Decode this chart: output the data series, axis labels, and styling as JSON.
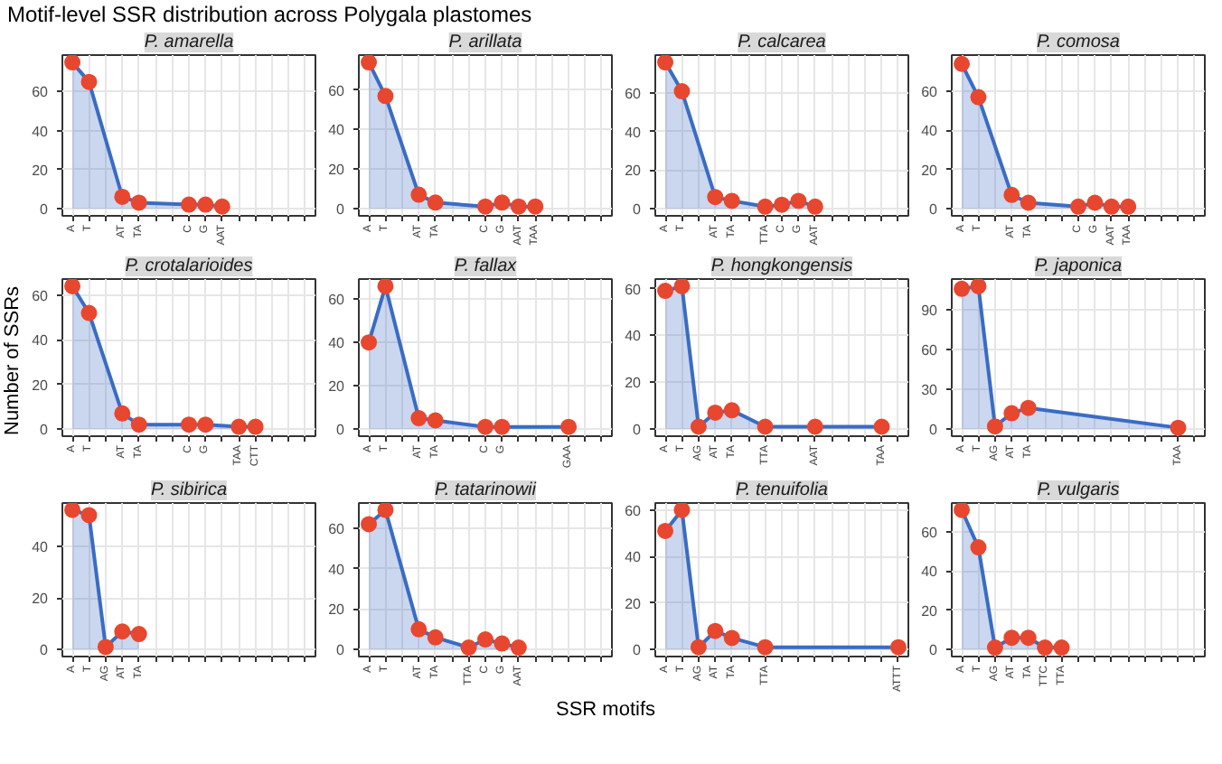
{
  "chart_data": [
    {
      "type": "area",
      "title": "P. amarella",
      "annotations": [
        "Motif-level SSR distribution across Polygala plastomes"
      ],
      "categories": [
        "A",
        "T",
        null,
        "AT",
        "TA",
        null,
        null,
        "C",
        "G",
        "AAT",
        null,
        null,
        null,
        null,
        null
      ],
      "ylim": [
        -3.75,
        78.75
      ],
      "yticks": [
        0,
        20,
        40,
        60
      ],
      "grid": true,
      "marker": "circle",
      "series": [
        {
          "color": "#3a6cc4",
          "colors": [
            "#e8472f",
            "#e8472f",
            "#e8472f",
            "#e8472f",
            "#e8472f",
            "#e8472f",
            "#e8472f",
            "#e8472f",
            "#e8472f",
            "#e8472f",
            "#e8472f",
            "#e8472f",
            "#e8472f",
            "#e8472f",
            "#e8472f"
          ],
          "values": [
            75,
            65,
            null,
            6,
            3,
            null,
            null,
            2,
            2,
            1,
            null,
            null,
            null,
            null,
            null
          ]
        }
      ]
    },
    {
      "type": "area",
      "title": "P. arillata",
      "categories": [
        "A",
        "T",
        null,
        "AT",
        "TA",
        null,
        null,
        "C",
        "G",
        "AAT",
        "TAA",
        null,
        null,
        null,
        null
      ],
      "ylim": [
        -3.7,
        77.7
      ],
      "yticks": [
        0,
        20,
        40,
        60
      ],
      "grid": true,
      "marker": "circle",
      "series": [
        {
          "color": "#3a6cc4",
          "colors": [
            "#e8472f",
            "#e8472f",
            "#e8472f",
            "#e8472f",
            "#e8472f",
            "#e8472f",
            "#e8472f",
            "#e8472f",
            "#e8472f",
            "#e8472f",
            "#e8472f",
            "#e8472f",
            "#e8472f",
            "#e8472f",
            "#e8472f"
          ],
          "values": [
            74,
            57,
            null,
            7,
            3,
            null,
            null,
            1,
            3,
            1,
            1,
            null,
            null,
            null,
            null
          ]
        }
      ]
    },
    {
      "type": "area",
      "title": "P. calcarea",
      "categories": [
        "A",
        "T",
        null,
        "AT",
        "TA",
        null,
        "TTA",
        "C",
        "G",
        "AAT",
        null,
        null,
        null,
        null,
        null
      ],
      "ylim": [
        -3.8,
        79.8
      ],
      "yticks": [
        0,
        20,
        40,
        60
      ],
      "grid": true,
      "marker": "circle",
      "series": [
        {
          "color": "#3a6cc4",
          "colors": [
            "#e8472f",
            "#e8472f",
            "#e8472f",
            "#e8472f",
            "#e8472f",
            "#e8472f",
            "#e8472f",
            "#e8472f",
            "#e8472f",
            "#e8472f",
            "#e8472f",
            "#e8472f",
            "#e8472f",
            "#e8472f",
            "#e8472f"
          ],
          "values": [
            76,
            61,
            null,
            6,
            4,
            null,
            1,
            2,
            4,
            1,
            null,
            null,
            null,
            null,
            null
          ]
        }
      ]
    },
    {
      "type": "area",
      "title": "P. comosa",
      "categories": [
        "A",
        "T",
        null,
        "AT",
        "TA",
        null,
        null,
        "C",
        "G",
        "AAT",
        "TAA",
        null,
        null,
        null,
        null
      ],
      "ylim": [
        -3.7,
        78.5
      ],
      "yticks": [
        0,
        20,
        40,
        60
      ],
      "grid": true,
      "marker": "circle",
      "series": [
        {
          "color": "#3a6cc4",
          "colors": [
            "#e8472f",
            "#e8472f",
            "#e8472f",
            "#e8472f",
            "#e8472f",
            "#e8472f",
            "#e8472f",
            "#e8472f",
            "#e8472f",
            "#e8472f",
            "#e8472f",
            "#e8472f",
            "#e8472f",
            "#e8472f",
            "#e8472f"
          ],
          "values": [
            74,
            57,
            null,
            7,
            3,
            null,
            null,
            1,
            3,
            1,
            1,
            null,
            null,
            null,
            null
          ]
        }
      ]
    },
    {
      "type": "area",
      "title": "P. crotalarioides",
      "ylabel": "Number of SSRs",
      "categories": [
        "A",
        "T",
        null,
        "AT",
        "TA",
        null,
        null,
        "C",
        "G",
        null,
        "TAA",
        "CTT",
        null,
        null,
        null
      ],
      "ylim": [
        -3.2,
        67.2
      ],
      "yticks": [
        0,
        20,
        40,
        60
      ],
      "grid": true,
      "marker": "circle",
      "series": [
        {
          "color": "#3a6cc4",
          "colors": [
            "#e8472f",
            "#e8472f",
            "#e8472f",
            "#e8472f",
            "#e8472f",
            "#e8472f",
            "#e8472f",
            "#e8472f",
            "#e8472f",
            "#e8472f",
            "#e8472f",
            "#e8472f",
            "#e8472f",
            "#e8472f",
            "#e8472f"
          ],
          "values": [
            64,
            52,
            null,
            7,
            2,
            null,
            null,
            2,
            2,
            null,
            1,
            1,
            null,
            null,
            null
          ]
        }
      ]
    },
    {
      "type": "area",
      "title": "P. fallax",
      "categories": [
        "A",
        "T",
        null,
        "AT",
        "TA",
        null,
        null,
        "C",
        "G",
        null,
        null,
        null,
        "GAA",
        null,
        null
      ],
      "ylim": [
        -3.3,
        69.3
      ],
      "yticks": [
        0,
        20,
        40,
        60
      ],
      "grid": true,
      "marker": "circle",
      "series": [
        {
          "color": "#3a6cc4",
          "colors": [
            "#e8472f",
            "#e8472f",
            "#e8472f",
            "#e8472f",
            "#e8472f",
            "#e8472f",
            "#e8472f",
            "#e8472f",
            "#e8472f",
            "#e8472f",
            "#e8472f",
            "#e8472f",
            "#e8472f",
            "#e8472f",
            "#e8472f"
          ],
          "values": [
            40,
            66,
            null,
            5,
            4,
            null,
            null,
            1,
            1,
            null,
            null,
            null,
            1,
            null,
            null
          ]
        }
      ]
    },
    {
      "type": "area",
      "title": "P. hongkongensis",
      "categories": [
        "A",
        "T",
        "AG",
        "AT",
        "TA",
        null,
        "TTA",
        null,
        null,
        "AAT",
        null,
        null,
        null,
        "TAA",
        null
      ],
      "ylim": [
        -3.05,
        64.05
      ],
      "yticks": [
        0,
        20,
        40,
        60
      ],
      "grid": true,
      "marker": "circle",
      "series": [
        {
          "color": "#3a6cc4",
          "colors": [
            "#e8472f",
            "#e8472f",
            "#e8472f",
            "#e8472f",
            "#e8472f",
            "#e8472f",
            "#e8472f",
            "#e8472f",
            "#e8472f",
            "#e8472f",
            "#e8472f",
            "#e8472f",
            "#e8472f",
            "#e8472f",
            "#e8472f"
          ],
          "values": [
            59,
            61,
            1,
            7,
            8,
            null,
            1,
            null,
            null,
            1,
            null,
            null,
            null,
            1,
            null
          ]
        }
      ]
    },
    {
      "type": "area",
      "title": "P. japonica",
      "categories": [
        "A",
        "T",
        "AG",
        "AT",
        "TA",
        null,
        null,
        null,
        null,
        null,
        null,
        null,
        null,
        "TAA",
        null
      ],
      "ylim": [
        -5.4,
        113.4
      ],
      "yticks": [
        0,
        30,
        60,
        90
      ],
      "grid": true,
      "marker": "circle",
      "series": [
        {
          "color": "#3a6cc4",
          "colors": [
            "#e8472f",
            "#e8472f",
            "#e8472f",
            "#e8472f",
            "#e8472f",
            "#e8472f",
            "#e8472f",
            "#e8472f",
            "#e8472f",
            "#e8472f",
            "#e8472f",
            "#e8472f",
            "#e8472f",
            "#e8472f",
            "#e8472f"
          ],
          "values": [
            106,
            108,
            2,
            12,
            16,
            null,
            null,
            null,
            null,
            null,
            null,
            null,
            null,
            1,
            null
          ]
        }
      ]
    },
    {
      "type": "area",
      "title": "P. sibirica",
      "categories": [
        "A",
        "T",
        "AG",
        "AT",
        "TA",
        null,
        null,
        null,
        null,
        null,
        null,
        null,
        null,
        null,
        null
      ],
      "ylim": [
        -2.7,
        56.7
      ],
      "yticks": [
        0,
        20,
        40
      ],
      "grid": true,
      "marker": "circle",
      "series": [
        {
          "color": "#3a6cc4",
          "colors": [
            "#e8472f",
            "#e8472f",
            "#e8472f",
            "#e8472f",
            "#e8472f",
            "#e8472f",
            "#e8472f",
            "#e8472f",
            "#e8472f",
            "#e8472f",
            "#e8472f",
            "#e8472f",
            "#e8472f",
            "#e8472f",
            "#e8472f"
          ],
          "values": [
            54,
            52,
            1,
            7,
            6,
            null,
            null,
            null,
            null,
            null,
            null,
            null,
            null,
            null,
            null
          ]
        }
      ]
    },
    {
      "type": "area",
      "title": "P. tatarinowii",
      "xlabel": "SSR motifs",
      "categories": [
        "A",
        "T",
        null,
        "AT",
        "TA",
        null,
        "TTA",
        "C",
        "G",
        "AAT",
        null,
        null,
        null,
        null,
        null
      ],
      "ylim": [
        -3.45,
        72.45
      ],
      "yticks": [
        0,
        20,
        40,
        60
      ],
      "grid": true,
      "marker": "circle",
      "series": [
        {
          "color": "#3a6cc4",
          "colors": [
            "#e8472f",
            "#e8472f",
            "#e8472f",
            "#e8472f",
            "#e8472f",
            "#e8472f",
            "#e8472f",
            "#e8472f",
            "#e8472f",
            "#e8472f",
            "#e8472f",
            "#e8472f",
            "#e8472f",
            "#e8472f",
            "#e8472f"
          ],
          "values": [
            62,
            69,
            null,
            10,
            6,
            null,
            1,
            5,
            3,
            1,
            null,
            null,
            null,
            null,
            null
          ]
        }
      ]
    },
    {
      "type": "area",
      "title": "P. tenuifolia",
      "categories": [
        "A",
        "T",
        "AG",
        "AT",
        "TA",
        null,
        "TTA",
        null,
        null,
        null,
        null,
        null,
        null,
        null,
        "ATTT"
      ],
      "ylim": [
        -3,
        63
      ],
      "yticks": [
        0,
        20,
        40,
        60
      ],
      "grid": true,
      "marker": "circle",
      "series": [
        {
          "color": "#3a6cc4",
          "colors": [
            "#e8472f",
            "#e8472f",
            "#e8472f",
            "#e8472f",
            "#e8472f",
            "#e8472f",
            "#e8472f",
            "#e8472f",
            "#e8472f",
            "#e8472f",
            "#e8472f",
            "#e8472f",
            "#e8472f",
            "#e8472f",
            "#e8472f"
          ],
          "values": [
            51,
            60,
            1,
            8,
            5,
            null,
            1,
            null,
            null,
            null,
            null,
            null,
            null,
            null,
            1
          ]
        }
      ]
    },
    {
      "type": "area",
      "title": "P. vulgaris",
      "categories": [
        "A",
        "T",
        "AG",
        "AT",
        "TA",
        "TTC",
        "TTA",
        null,
        null,
        null,
        null,
        null,
        null,
        null,
        null
      ],
      "ylim": [
        -3.55,
        74.55
      ],
      "yticks": [
        0,
        20,
        40,
        60
      ],
      "grid": true,
      "marker": "circle",
      "series": [
        {
          "color": "#3a6cc4",
          "colors": [
            "#e8472f",
            "#e8472f",
            "#e8472f",
            "#e8472f",
            "#e8472f",
            "#e8472f",
            "#e8472f",
            "#e8472f",
            "#e8472f",
            "#e8472f",
            "#e8472f",
            "#e8472f",
            "#e8472f",
            "#e8472f",
            "#e8472f"
          ],
          "values": [
            71,
            52,
            1,
            6,
            6,
            1,
            1,
            null,
            null,
            null,
            null,
            null,
            null,
            null,
            null
          ]
        }
      ]
    }
  ]
}
